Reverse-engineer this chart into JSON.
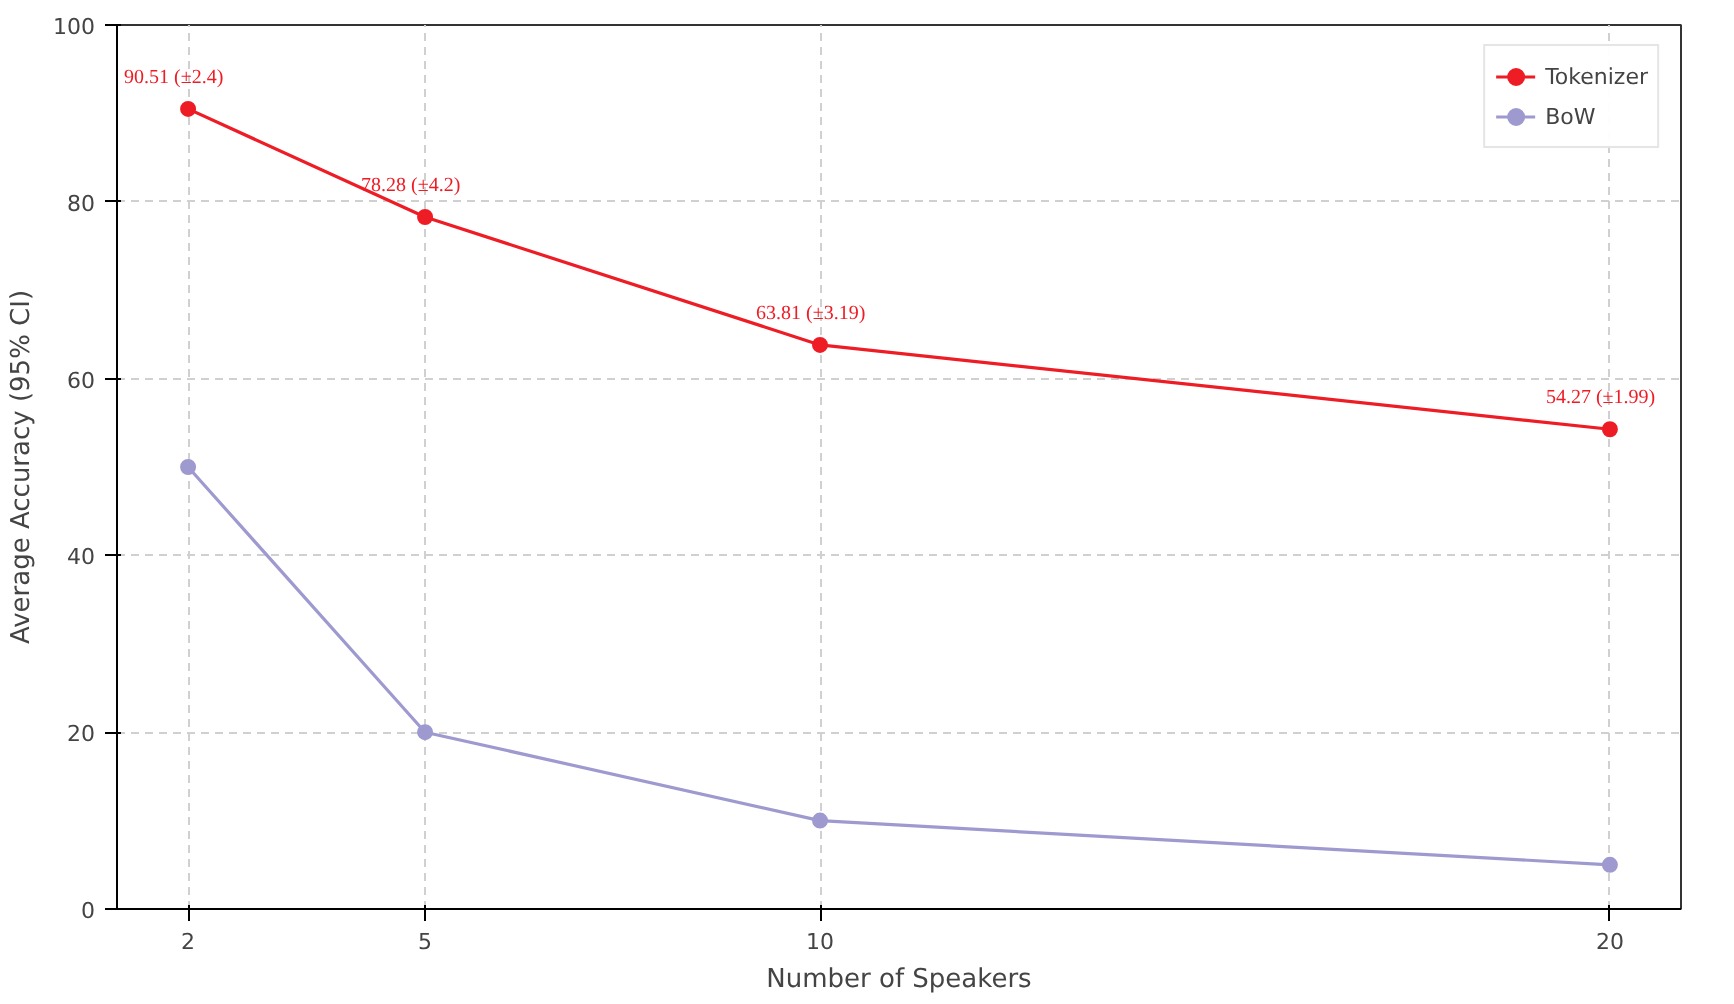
{
  "chart_data": {
    "type": "line",
    "xlabel": "Number of Speakers",
    "ylabel": "Average Accuracy (95% CI)",
    "x": [
      2,
      5,
      10,
      20
    ],
    "series": [
      {
        "name": "Tokenizer",
        "color": "#ee1c25",
        "values": [
          90.51,
          78.28,
          63.81,
          54.27
        ],
        "value_labels": [
          "90.51 (±2.4)",
          "78.28 (±4.2)",
          "63.81 (±3.19)",
          "54.27 (±1.99)"
        ]
      },
      {
        "name": "BoW",
        "color": "#9e9ad0",
        "values": [
          50,
          20,
          10,
          5
        ]
      }
    ],
    "xlim": [
      1.1,
      20.9
    ],
    "ylim": [
      0,
      100
    ],
    "xticks": [
      2,
      5,
      10,
      20
    ],
    "yticks": [
      0,
      20,
      40,
      60,
      80,
      100
    ],
    "grid": true,
    "legend": "top right",
    "marker": "circle",
    "line_style": "solid"
  }
}
